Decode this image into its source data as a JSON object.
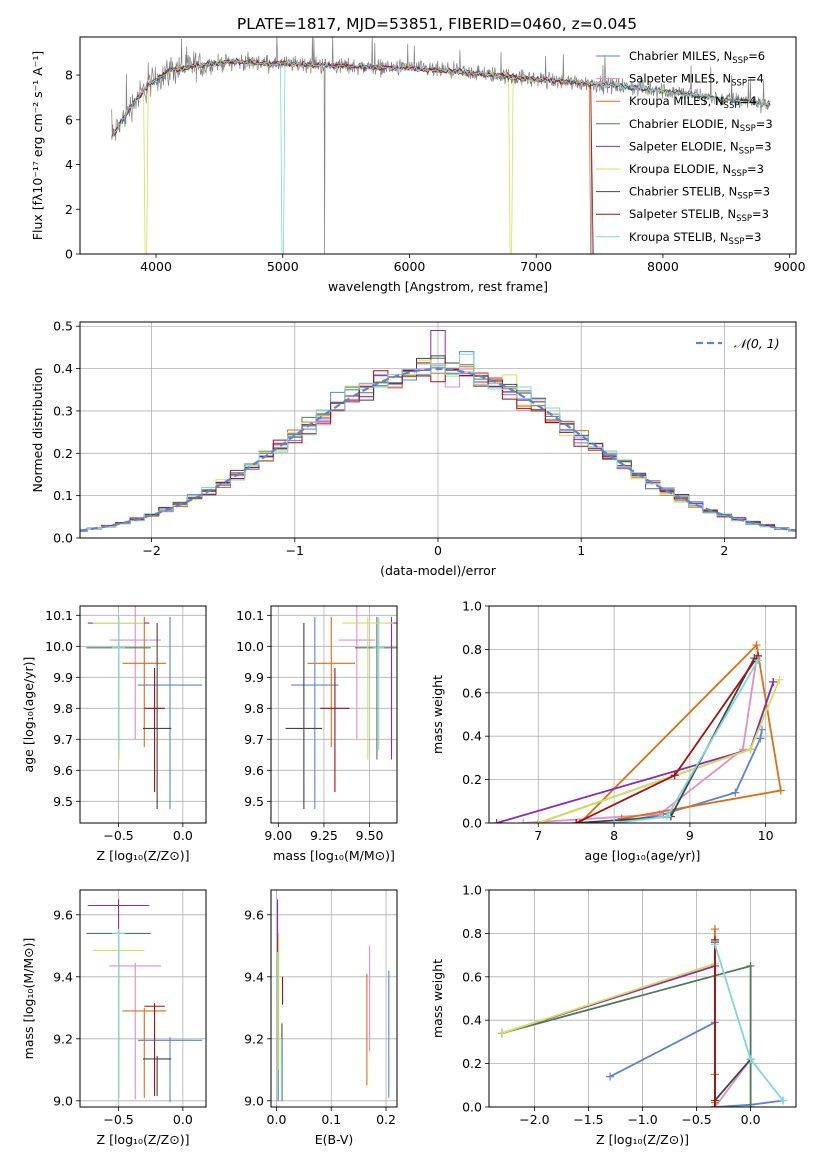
{
  "figure_title": "PLATE=1817, MJD=53851, FIBERID=0460, z=0.045",
  "colors": {
    "Chabrier MILES": "#5b84d6",
    "Salpeter MILES": "#e68cc8",
    "Kroupa MILES": "#e06d10",
    "Chabrier ELODIE": "#4b7a5a",
    "Salpeter ELODIE": "#8e2bb6",
    "Kroupa ELODIE": "#d4e05a",
    "Chabrier STELIB": "#444444",
    "Salpeter STELIB": "#a80e0e",
    "Kroupa STELIB": "#7fd7dd"
  },
  "chart_data": [
    {
      "id": "spectrum",
      "type": "line",
      "xlabel": "wavelength [Angstrom, rest frame]",
      "ylabel": "Flux [fλ10⁻¹⁷ erg cm⁻² s⁻¹ A⁻¹]",
      "xlim": [
        3400,
        9050
      ],
      "ylim": [
        0,
        9.7
      ],
      "xticks": [
        4000,
        5000,
        6000,
        7000,
        8000,
        9000
      ],
      "yticks": [
        0,
        2,
        4,
        6,
        8
      ],
      "grid": false,
      "legend_position": "top-right",
      "data_range": [
        3650,
        8850
      ],
      "continuum": {
        "x": [
          3650,
          3800,
          3950,
          4100,
          4300,
          4600,
          5000,
          5500,
          6000,
          6500,
          7000,
          7500,
          8000,
          8500,
          8850
        ],
        "y": [
          5.2,
          6.6,
          7.6,
          8.2,
          8.4,
          8.6,
          8.5,
          8.4,
          8.3,
          8.1,
          7.8,
          7.6,
          7.3,
          6.9,
          6.7
        ]
      },
      "legend": [
        "Chabrier MILES, N_SSP=6",
        "Salpeter MILES, N_SSP=4",
        "Kroupa MILES, N_SSP=4",
        "Chabrier ELODIE, N_SSP=3",
        "Salpeter ELODIE, N_SSP=3",
        "Kroupa ELODIE, N_SSP=3",
        "Chabrier STELIB, N_SSP=3",
        "Salpeter STELIB, N_SSP=3",
        "Kroupa STELIB, N_SSP=3"
      ]
    },
    {
      "id": "residuals",
      "type": "area",
      "xlabel": "(data-model)/error",
      "ylabel": "Normed distribution",
      "xlim": [
        -2.5,
        2.5
      ],
      "ylim": [
        0,
        0.51
      ],
      "xticks": [
        -2,
        -1,
        0,
        1,
        2
      ],
      "yticks": [
        0.0,
        0.1,
        0.2,
        0.3,
        0.4,
        0.5
      ],
      "grid": true,
      "legend_position": "top-right",
      "legend": [
        "𝒩(0, 1)"
      ],
      "bin_width": 0.1,
      "peak_bins": {
        "Salpeter ELODIE": 0.49,
        "Chabrier MILES": 0.44,
        "Kroupa ELODIE": 0.42
      }
    },
    {
      "id": "age_vs_Z",
      "type": "scatter",
      "xlabel": "Z [log₁₀(Z/Z⊙)]",
      "ylabel": "age  [log₁₀(age/yr)]",
      "xlim": [
        -0.8,
        0.18
      ],
      "ylim": [
        9.43,
        10.13
      ],
      "xticks": [
        -0.5,
        0.0
      ],
      "yticks": [
        9.5,
        9.6,
        9.7,
        9.8,
        9.9,
        10.0,
        10.1
      ],
      "grid": true,
      "points": [
        {
          "model": "Chabrier MILES",
          "x": -0.1,
          "y": 9.875,
          "xerr": 0.25,
          "yerr": [
            0.4,
            0.22
          ]
        },
        {
          "model": "Salpeter MILES",
          "x": -0.37,
          "y": 10.02,
          "xerr": 0.2,
          "yerr": [
            0.32,
            0.12
          ]
        },
        {
          "model": "Kroupa MILES",
          "x": -0.3,
          "y": 9.945,
          "xerr": 0.17,
          "yerr": [
            0.27,
            0.15
          ]
        },
        {
          "model": "Chabrier ELODIE",
          "x": -0.5,
          "y": 9.995,
          "xerr": 0.25,
          "yerr": [
            0.36,
            0.1
          ]
        },
        {
          "model": "Salpeter ELODIE",
          "x": -0.5,
          "y": 10.075,
          "xerr": 0.24,
          "yerr": [
            0.44,
            0.02
          ]
        },
        {
          "model": "Kroupa ELODIE",
          "x": -0.5,
          "y": 10.075,
          "xerr": 0.2,
          "yerr": [
            0.44,
            0.02
          ]
        },
        {
          "model": "Chabrier STELIB",
          "x": -0.2,
          "y": 9.735,
          "xerr": 0.11,
          "yerr": [
            0.26,
            0.34
          ]
        },
        {
          "model": "Salpeter STELIB",
          "x": -0.22,
          "y": 9.8,
          "xerr": 0.08,
          "yerr": [
            0.27,
            0.13
          ]
        },
        {
          "model": "Kroupa STELIB",
          "x": -0.5,
          "y": 9.995,
          "xerr": 0.05,
          "yerr": [
            0.33,
            0.1
          ]
        }
      ]
    },
    {
      "id": "age_vs_mass",
      "type": "scatter",
      "xlabel": "mass [log₁₀(M/M⊙)]",
      "ylabel": "",
      "xlim": [
        8.96,
        9.65
      ],
      "ylim": [
        9.43,
        10.13
      ],
      "xticks": [
        9.0,
        9.25,
        9.5
      ],
      "yticks": [
        9.5,
        9.6,
        9.7,
        9.8,
        9.9,
        10.0,
        10.1
      ],
      "grid": true,
      "points": [
        {
          "model": "Chabrier MILES",
          "x": 9.2,
          "y": 9.875,
          "xerr": 0.13,
          "yerr": [
            0.4,
            0.22
          ]
        },
        {
          "model": "Salpeter MILES",
          "x": 9.43,
          "y": 10.02,
          "xerr": 0.1,
          "yerr": [
            0.32,
            0.12
          ]
        },
        {
          "model": "Kroupa MILES",
          "x": 9.29,
          "y": 9.945,
          "xerr": 0.13,
          "yerr": [
            0.27,
            0.15
          ]
        },
        {
          "model": "Chabrier ELODIE",
          "x": 9.54,
          "y": 9.995,
          "xerr": 0.12,
          "yerr": [
            0.36,
            0.1
          ]
        },
        {
          "model": "Salpeter ELODIE",
          "x": 9.62,
          "y": 10.075,
          "xerr": 0.03,
          "yerr": [
            0.44,
            0.02
          ]
        },
        {
          "model": "Kroupa ELODIE",
          "x": 9.49,
          "y": 10.075,
          "xerr": 0.14,
          "yerr": [
            0.44,
            0.02
          ]
        },
        {
          "model": "Chabrier STELIB",
          "x": 9.14,
          "y": 9.735,
          "xerr": 0.1,
          "yerr": [
            0.26,
            0.34
          ]
        },
        {
          "model": "Salpeter STELIB",
          "x": 9.31,
          "y": 9.8,
          "xerr": 0.08,
          "yerr": [
            0.27,
            0.13
          ]
        },
        {
          "model": "Kroupa STELIB",
          "x": 9.55,
          "y": 9.995,
          "xerr": 0.03,
          "yerr": [
            0.33,
            0.1
          ]
        }
      ]
    },
    {
      "id": "massweight_vs_age",
      "type": "line",
      "xlabel": "age  [log₁₀(age/yr)]",
      "ylabel": "mass weight",
      "xlim": [
        6.35,
        10.4
      ],
      "ylim": [
        0,
        1.0
      ],
      "xticks": [
        7,
        8,
        9,
        10
      ],
      "yticks": [
        0.0,
        0.2,
        0.4,
        0.6,
        0.8,
        1.0
      ],
      "grid": true,
      "series": [
        {
          "model": "Chabrier MILES",
          "x": [
            7.55,
            8.0,
            8.65,
            9.6,
            9.93,
            9.95
          ],
          "y": [
            0.0,
            0.0,
            0.04,
            0.14,
            0.39,
            0.43
          ]
        },
        {
          "model": "Salpeter MILES",
          "x": [
            6.8,
            8.6,
            9.7,
            9.88
          ],
          "y": [
            0.0,
            0.04,
            0.34,
            0.76
          ]
        },
        {
          "model": "Kroupa MILES",
          "x": [
            7.55,
            9.88,
            10.2,
            8.1
          ],
          "y": [
            0.0,
            0.82,
            0.15,
            0.02
          ]
        },
        {
          "model": "Chabrier ELODIE",
          "x": [
            7.0,
            9.8,
            10.1
          ],
          "y": [
            0.0,
            0.34,
            0.65
          ]
        },
        {
          "model": "Salpeter ELODIE",
          "x": [
            6.45,
            9.8,
            10.1
          ],
          "y": [
            0.0,
            0.34,
            0.65
          ]
        },
        {
          "model": "Kroupa ELODIE",
          "x": [
            7.0,
            9.8,
            10.18
          ],
          "y": [
            0.0,
            0.34,
            0.66
          ]
        },
        {
          "model": "Chabrier STELIB",
          "x": [
            7.5,
            8.75,
            9.85
          ],
          "y": [
            0.0,
            0.03,
            0.76
          ]
        },
        {
          "model": "Salpeter STELIB",
          "x": [
            7.5,
            8.8,
            9.9
          ],
          "y": [
            0.0,
            0.22,
            0.77
          ]
        },
        {
          "model": "Kroupa STELIB",
          "x": [
            8.0,
            8.7,
            9.9
          ],
          "y": [
            0.0,
            0.03,
            0.75
          ]
        }
      ]
    },
    {
      "id": "mass_vs_Z",
      "type": "scatter",
      "xlabel": "Z [log₁₀(Z/Z⊙)]",
      "ylabel": "mass [log₁₀(M/M⊙)]",
      "xlim": [
        -0.8,
        0.18
      ],
      "ylim": [
        8.98,
        9.68
      ],
      "xticks": [
        -0.5,
        0.0
      ],
      "yticks": [
        9.0,
        9.2,
        9.4,
        9.6
      ],
      "grid": true,
      "points": [
        {
          "model": "Chabrier MILES",
          "x": -0.1,
          "y": 9.195,
          "xerr": 0.25,
          "yerr": [
            0.2,
            0.01
          ]
        },
        {
          "model": "Salpeter MILES",
          "x": -0.37,
          "y": 9.435,
          "xerr": 0.2,
          "yerr": [
            0.43,
            0.01
          ]
        },
        {
          "model": "Kroupa MILES",
          "x": -0.3,
          "y": 9.29,
          "xerr": 0.17,
          "yerr": [
            0.28,
            0.01
          ]
        },
        {
          "model": "Chabrier ELODIE",
          "x": -0.5,
          "y": 9.54,
          "xerr": 0.25,
          "yerr": [
            0.53,
            0.01
          ]
        },
        {
          "model": "Salpeter ELODIE",
          "x": -0.5,
          "y": 9.63,
          "xerr": 0.24,
          "yerr": [
            0.62,
            0.02
          ]
        },
        {
          "model": "Kroupa ELODIE",
          "x": -0.5,
          "y": 9.485,
          "xerr": 0.2,
          "yerr": [
            0.47,
            0.07
          ]
        },
        {
          "model": "Chabrier STELIB",
          "x": -0.2,
          "y": 9.135,
          "xerr": 0.11,
          "yerr": [
            0.12,
            0.01
          ]
        },
        {
          "model": "Salpeter STELIB",
          "x": -0.22,
          "y": 9.305,
          "xerr": 0.08,
          "yerr": [
            0.29,
            0.01
          ]
        },
        {
          "model": "Kroupa STELIB",
          "x": -0.5,
          "y": 9.54,
          "xerr": 0.05,
          "yerr": [
            0.53,
            0.01
          ]
        }
      ]
    },
    {
      "id": "mass_vs_EBV",
      "type": "scatter",
      "xlabel": "E(B-V)",
      "ylabel": "",
      "xlim": [
        -0.01,
        0.22
      ],
      "ylim": [
        8.98,
        9.68
      ],
      "xticks": [
        0.0,
        0.1,
        0.2
      ],
      "yticks": [
        9.0,
        9.2,
        9.4,
        9.6
      ],
      "grid": true,
      "points": [
        {
          "model": "Chabrier MILES",
          "x": 0.205,
          "y": 9.21,
          "yerr": [
            0.2,
            0.21
          ]
        },
        {
          "model": "Salpeter MILES",
          "x": 0.17,
          "y": 9.43,
          "yerr": [
            0.27,
            0.07
          ]
        },
        {
          "model": "Kroupa MILES",
          "x": 0.165,
          "y": 9.23,
          "yerr": [
            0.18,
            0.18
          ]
        },
        {
          "model": "Chabrier ELODIE",
          "x": 0.003,
          "y": 9.48,
          "yerr": [
            0.48,
            0.06
          ]
        },
        {
          "model": "Salpeter ELODIE",
          "x": 0.002,
          "y": 9.58,
          "yerr": [
            0.1,
            0.07
          ]
        },
        {
          "model": "Kroupa ELODIE",
          "x": 0.004,
          "y": 9.4,
          "yerr": [
            0.3,
            0.14
          ]
        },
        {
          "model": "Chabrier STELIB",
          "x": 0.01,
          "y": 9.15,
          "yerr": [
            0.15,
            0.1
          ]
        },
        {
          "model": "Salpeter STELIB",
          "x": 0.011,
          "y": 9.35,
          "yerr": [
            0.04,
            0.05
          ]
        },
        {
          "model": "Kroupa STELIB",
          "x": 0.009,
          "y": 9.1,
          "yerr": [
            0.1,
            0.1
          ]
        }
      ]
    },
    {
      "id": "massweight_vs_Z",
      "type": "line",
      "xlabel": "Z [log₁₀(Z/Z⊙)]",
      "ylabel": "mass weight",
      "xlim": [
        -2.42,
        0.42
      ],
      "ylim": [
        0,
        1.0
      ],
      "xticks": [
        -2.0,
        -1.5,
        -1.0,
        -0.5,
        0.0
      ],
      "yticks": [
        0.0,
        0.2,
        0.4,
        0.6,
        0.8,
        1.0
      ],
      "grid": true,
      "series": [
        {
          "model": "Chabrier MILES",
          "x": [
            -1.3,
            -0.33,
            -0.33,
            0.0,
            0.3
          ],
          "y": [
            0.14,
            0.39,
            0.0,
            0.01,
            0.03
          ]
        },
        {
          "model": "Salpeter MILES",
          "x": [
            -0.33,
            -0.33,
            0.0
          ],
          "y": [
            0.76,
            0.0,
            0.22
          ]
        },
        {
          "model": "Kroupa MILES",
          "x": [
            -0.33,
            -0.33,
            -0.33,
            -0.33
          ],
          "y": [
            0.82,
            0.15,
            0.02,
            0.0
          ]
        },
        {
          "model": "Chabrier ELODIE",
          "x": [
            -2.3,
            0.0,
            0.0
          ],
          "y": [
            0.34,
            0.65,
            0.0
          ]
        },
        {
          "model": "Salpeter ELODIE",
          "x": [
            -2.3,
            -0.33,
            -0.33
          ],
          "y": [
            0.34,
            0.65,
            0.0
          ]
        },
        {
          "model": "Kroupa ELODIE",
          "x": [
            -2.3,
            -0.33,
            -0.33
          ],
          "y": [
            0.34,
            0.66,
            0.0
          ]
        },
        {
          "model": "Chabrier STELIB",
          "x": [
            -0.33,
            -0.33,
            0.0
          ],
          "y": [
            0.76,
            0.03,
            0.22
          ]
        },
        {
          "model": "Salpeter STELIB",
          "x": [
            -0.33,
            -0.33
          ],
          "y": [
            0.77,
            0.0
          ]
        },
        {
          "model": "Kroupa STELIB",
          "x": [
            -0.33,
            0.0,
            0.3
          ],
          "y": [
            0.75,
            0.22,
            0.03
          ]
        }
      ]
    }
  ]
}
